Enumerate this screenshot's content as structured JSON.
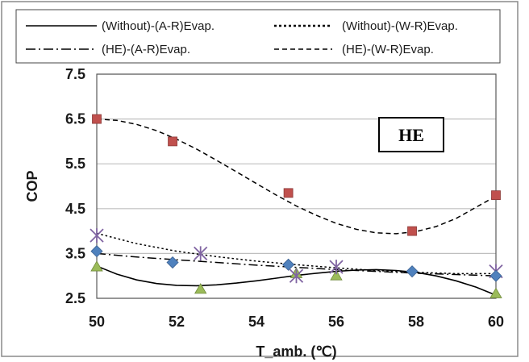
{
  "chart_data": {
    "type": "scatter",
    "title": "",
    "xlabel": "T_amb. (℃)",
    "ylabel": "COP",
    "xlim": [
      50,
      60
    ],
    "ylim": [
      2.5,
      7.5
    ],
    "x_ticks": [
      "50",
      "52",
      "54",
      "56",
      "58",
      "60"
    ],
    "y_ticks": [
      "2.5",
      "3.5",
      "4.5",
      "5.5",
      "6.5",
      "7.5"
    ],
    "grid": true,
    "legend_position": "top",
    "annotation": "HE",
    "series": [
      {
        "name": "(Without)-(A-R)Evap.",
        "marker": "triangle",
        "marker_color": "#9bbb59",
        "line_style": "solid",
        "x": [
          50,
          52.6,
          55,
          56,
          60
        ],
        "y": [
          3.2,
          2.7,
          3.05,
          3.0,
          2.6
        ],
        "trend_x": [
          50,
          50.5,
          51,
          51.5,
          52,
          52.5,
          53,
          53.5,
          54,
          54.5,
          55,
          55.5,
          56,
          56.5,
          57,
          57.5,
          58,
          58.5,
          59,
          59.5,
          60
        ],
        "trend_y": [
          3.22,
          3.04,
          2.91,
          2.83,
          2.79,
          2.78,
          2.8,
          2.84,
          2.89,
          2.95,
          3.01,
          3.06,
          3.1,
          3.13,
          3.14,
          3.12,
          3.08,
          3.0,
          2.89,
          2.75,
          2.57
        ]
      },
      {
        "name": "(Without)-(W-R)Evap.",
        "marker": "star",
        "marker_color": "#8064a2",
        "line_style": "dotted",
        "x": [
          50,
          52.6,
          55,
          56,
          60
        ],
        "y": [
          3.9,
          3.5,
          3.0,
          3.2,
          3.1
        ],
        "trend_x": [
          50,
          51,
          52,
          53,
          54,
          55,
          56,
          57,
          58,
          59,
          60
        ],
        "trend_y": [
          3.95,
          3.72,
          3.55,
          3.43,
          3.33,
          3.25,
          3.18,
          3.12,
          3.08,
          3.05,
          3.05
        ]
      },
      {
        "name": "(HE)-(A-R)Evap.",
        "marker": "diamond",
        "marker_color": "#4f81bd",
        "line_style": "dashdot",
        "x": [
          50,
          51.9,
          54.8,
          57.9,
          60
        ],
        "y": [
          3.55,
          3.3,
          3.25,
          3.1,
          3.0
        ],
        "trend_x": [
          50,
          51,
          52,
          53,
          54,
          55,
          56,
          57,
          58,
          59,
          60
        ],
        "trend_y": [
          3.5,
          3.42,
          3.36,
          3.3,
          3.24,
          3.19,
          3.14,
          3.1,
          3.06,
          3.03,
          3.0
        ]
      },
      {
        "name": "(HE)-(W-R)Evap.",
        "marker": "square",
        "marker_color": "#c0504d",
        "line_style": "dashed",
        "x": [
          50,
          51.9,
          54.8,
          57.9,
          60
        ],
        "y": [
          6.5,
          6.0,
          4.85,
          4.0,
          4.8
        ],
        "trend_x": [
          50,
          50.5,
          51,
          51.5,
          52,
          52.5,
          53,
          53.5,
          54,
          54.5,
          55,
          55.5,
          56,
          56.5,
          57,
          57.5,
          58,
          58.5,
          59,
          59.5,
          60
        ],
        "trend_y": [
          6.5,
          6.47,
          6.38,
          6.24,
          6.05,
          5.83,
          5.58,
          5.32,
          5.06,
          4.8,
          4.56,
          4.35,
          4.17,
          4.04,
          3.96,
          3.94,
          3.99,
          4.1,
          4.28,
          4.53,
          4.78
        ]
      }
    ]
  }
}
